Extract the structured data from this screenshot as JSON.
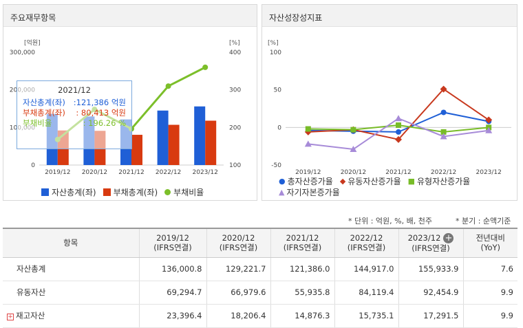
{
  "left_panel": {
    "title": "주요재무항목"
  },
  "right_panel": {
    "title": "자산성장성지표"
  },
  "tooltip": {
    "title": "2021/12",
    "rows": [
      {
        "label": "자산총계(좌)",
        "value": ":121,386 억원",
        "color": "#1f5fd6"
      },
      {
        "label": "부채총계(좌)",
        "value": ": 80,413 억원",
        "color": "#d83a10"
      },
      {
        "label": "부채비율",
        "value": ":     196.26 %",
        "color": "#7cbf2a"
      }
    ]
  },
  "chart_data": [
    {
      "type": "bar",
      "categories": [
        "2019/12",
        "2020/12",
        "2021/12",
        "2022/12",
        "2023/12"
      ],
      "ylabel": "[억원]",
      "y2label": "[%]",
      "ylim": [
        0,
        300000
      ],
      "y2lim": [
        100,
        400
      ],
      "yticks": [
        "0",
        "100,000",
        "200,000",
        "300,000"
      ],
      "y2ticks": [
        "100",
        "200",
        "300",
        "400"
      ],
      "series": [
        {
          "name": "자산총계(좌)",
          "kind": "bar",
          "axis": "left",
          "color": "#1f5fd6",
          "values": [
            136000.8,
            129221.7,
            121386.0,
            144917.0,
            155933.9
          ]
        },
        {
          "name": "부채총계(좌)",
          "kind": "bar",
          "axis": "left",
          "color": "#d83a10",
          "values": [
            92000,
            91000,
            80413,
            107000,
            118000
          ]
        },
        {
          "name": "부채비율",
          "kind": "line",
          "axis": "right",
          "color": "#7cbf2a",
          "values": [
            168,
            248,
            196.26,
            310,
            360
          ]
        }
      ]
    },
    {
      "type": "line",
      "categories": [
        "2019/12",
        "2020/12",
        "2021/12",
        "2022/12",
        "2023/12"
      ],
      "ylabel": "[%]",
      "ylim": [
        -50,
        100
      ],
      "yticks": [
        "-50",
        "0",
        "50",
        "100"
      ],
      "series": [
        {
          "name": "총자산증가율",
          "marker": "circle",
          "color": "#1f5fd6",
          "values": [
            -4,
            -5,
            -6,
            20,
            8
          ]
        },
        {
          "name": "유동자산증가율",
          "marker": "diamond",
          "color": "#c8391e",
          "values": [
            -6,
            -3,
            -16,
            51,
            10
          ]
        },
        {
          "name": "유형자산증가율",
          "marker": "square",
          "color": "#78bc28",
          "values": [
            -2,
            -3,
            3,
            -6,
            0
          ]
        },
        {
          "name": "자기자본증가율",
          "marker": "triangle",
          "color": "#a78bd8",
          "values": [
            -22,
            -29,
            12,
            -12,
            -4
          ]
        }
      ]
    }
  ],
  "note": {
    "unit": "* 단위 : 억원, %, 배, 천주",
    "period": "* 분기 : 순액기준"
  },
  "table": {
    "header_item": "항목",
    "columns": [
      {
        "year": "2019/12",
        "sub": "(IFRS연결)"
      },
      {
        "year": "2020/12",
        "sub": "(IFRS연결)"
      },
      {
        "year": "2021/12",
        "sub": "(IFRS연결)"
      },
      {
        "year": "2022/12",
        "sub": "(IFRS연결)"
      },
      {
        "year": "2023/12",
        "sub": "(IFRS연결)"
      }
    ],
    "yoy_header": "전년대비",
    "yoy_sub": "(YoY)",
    "rows": [
      {
        "label": "자산총계",
        "values": [
          "136,000.8",
          "129,221.7",
          "121,386.0",
          "144,917.0",
          "155,933.9"
        ],
        "yoy": "7.6"
      },
      {
        "label": "유동자산",
        "values": [
          "69,294.7",
          "66,979.6",
          "55,935.8",
          "84,119.4",
          "92,454.9"
        ],
        "yoy": "9.9"
      },
      {
        "label": "재고자산",
        "values": [
          "23,396.4",
          "18,206.4",
          "14,876.3",
          "15,735.1",
          "17,291.5"
        ],
        "yoy": "9.9",
        "expandable": true
      }
    ]
  }
}
